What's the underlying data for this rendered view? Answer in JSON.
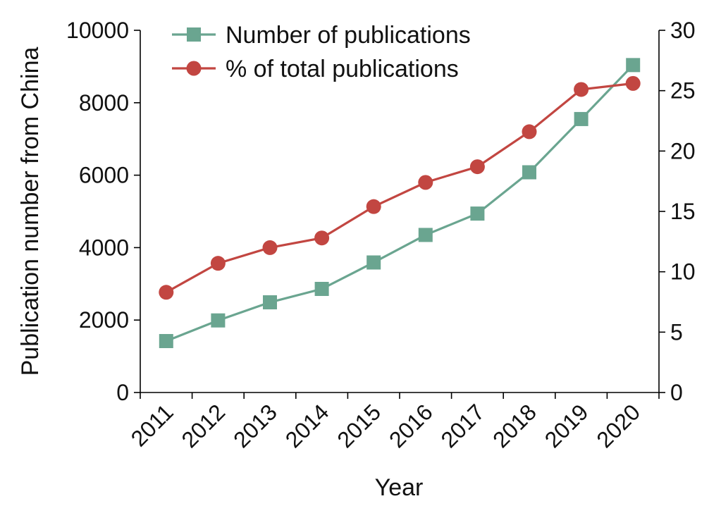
{
  "chart_data": {
    "type": "line",
    "x": [
      "2011",
      "2012",
      "2013",
      "2014",
      "2015",
      "2016",
      "2017",
      "2018",
      "2019",
      "2020"
    ],
    "xlabel": "Year",
    "ylabel_left": "Publication number from China",
    "ylim_left": [
      0,
      10000
    ],
    "yticks_left": [
      0,
      2000,
      4000,
      6000,
      8000,
      10000
    ],
    "ylim_right": [
      0,
      30
    ],
    "yticks_right": [
      0,
      5,
      10,
      15,
      20,
      25,
      30
    ],
    "grid": false,
    "legend_position": "top-left",
    "series": [
      {
        "name": "Number of publications",
        "axis": "left",
        "marker": "square",
        "color": "#6aa590",
        "values": [
          1420,
          1990,
          2490,
          2860,
          3590,
          4350,
          4940,
          6080,
          7550,
          9040
        ]
      },
      {
        "name": "% of total publications",
        "axis": "right",
        "marker": "circle",
        "color": "#c24641",
        "values": [
          8.3,
          10.7,
          12.0,
          12.8,
          15.4,
          17.4,
          18.7,
          21.6,
          25.1,
          25.6
        ]
      }
    ]
  }
}
